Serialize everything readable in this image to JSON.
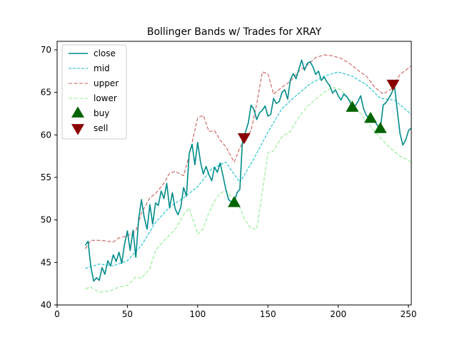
{
  "chart_data": {
    "type": "line",
    "title": "Bollinger Bands w/ Trades for XRAY",
    "xlabel": "",
    "ylabel": "",
    "xlim": [
      0,
      252
    ],
    "ylim": [
      40,
      71
    ],
    "xticks": [
      0,
      50,
      100,
      150,
      200,
      250
    ],
    "yticks": [
      40,
      45,
      50,
      55,
      60,
      65,
      70
    ],
    "grid": false,
    "legend_position": "top-left",
    "series": [
      {
        "name": "close",
        "color": "#008b8b",
        "style": "solid",
        "x": [
          20,
          22,
          24,
          26,
          28,
          30,
          32,
          34,
          36,
          38,
          40,
          42,
          44,
          46,
          48,
          50,
          52,
          54,
          56,
          58,
          60,
          62,
          64,
          66,
          68,
          70,
          72,
          74,
          76,
          78,
          80,
          82,
          84,
          86,
          88,
          90,
          92,
          94,
          96,
          98,
          100,
          102,
          104,
          106,
          108,
          110,
          112,
          114,
          116,
          118,
          120,
          122,
          124,
          126,
          128,
          130,
          132,
          134,
          136,
          138,
          140,
          142,
          144,
          146,
          148,
          150,
          152,
          154,
          156,
          158,
          160,
          162,
          164,
          166,
          168,
          170,
          172,
          174,
          176,
          178,
          180,
          182,
          184,
          186,
          188,
          190,
          192,
          194,
          196,
          198,
          200,
          202,
          204,
          206,
          208,
          210,
          212,
          214,
          216,
          218,
          220,
          222,
          224,
          226,
          228,
          230,
          232,
          234,
          236,
          238,
          240,
          242,
          244,
          246,
          248,
          250,
          252
        ],
        "values": [
          47.0,
          47.5,
          44.5,
          42.8,
          43.2,
          42.9,
          44.4,
          43.6,
          45.2,
          44.6,
          45.9,
          45.1,
          46.2,
          44.9,
          47.2,
          48.7,
          46.4,
          48.8,
          45.6,
          50.1,
          52.4,
          50.3,
          48.9,
          51.8,
          49.5,
          52.0,
          51.7,
          53.4,
          52.5,
          54.3,
          51.4,
          53.2,
          51.3,
          50.6,
          51.5,
          53.8,
          52.8,
          57.8,
          58.9,
          56.5,
          59.1,
          56.8,
          55.4,
          56.3,
          55.3,
          54.6,
          56.2,
          55.6,
          56.7,
          55.2,
          53.6,
          52.4,
          52.1,
          52.0,
          53.2,
          53.6,
          59.7,
          60.3,
          61.4,
          63.5,
          63.0,
          61.8,
          62.6,
          62.9,
          63.4,
          62.2,
          62.4,
          64.3,
          63.7,
          63.9,
          65.0,
          65.3,
          64.2,
          66.5,
          67.2,
          66.6,
          67.7,
          68.8,
          67.6,
          68.4,
          68.6,
          68.0,
          67.1,
          67.5,
          66.4,
          66.8,
          66.2,
          65.8,
          64.9,
          65.3,
          64.6,
          64.1,
          64.8,
          64.5,
          64.0,
          63.2,
          63.4,
          63.9,
          64.6,
          63.1,
          62.3,
          61.9,
          62.1,
          61.6,
          61.1,
          60.7,
          63.5,
          63.8,
          64.3,
          64.9,
          65.8,
          62.9,
          60.1,
          58.8,
          59.4,
          60.5,
          60.8
        ]
      },
      {
        "name": "mid",
        "color": "#17becf",
        "style": "dashed",
        "x": [
          20,
          30,
          40,
          50,
          60,
          70,
          80,
          90,
          100,
          110,
          120,
          130,
          140,
          150,
          160,
          170,
          180,
          190,
          200,
          210,
          220,
          230,
          240,
          252
        ],
        "values": [
          44.3,
          44.8,
          44.6,
          45.2,
          47.0,
          49.7,
          51.5,
          52.6,
          53.9,
          56.0,
          56.8,
          54.4,
          57.2,
          60.3,
          63.1,
          64.6,
          66.0,
          66.9,
          67.4,
          66.9,
          65.9,
          64.3,
          64.1,
          62.4
        ]
      },
      {
        "name": "upper",
        "color": "#cd5c5c",
        "style": "dashed",
        "x": [
          20,
          24,
          30,
          36,
          40,
          44,
          50,
          56,
          60,
          66,
          70,
          76,
          80,
          84,
          90,
          94,
          100,
          104,
          108,
          112,
          116,
          120,
          126,
          130,
          134,
          138,
          142,
          146,
          150,
          154,
          160,
          166,
          172,
          178,
          184,
          190,
          196,
          202,
          208,
          214,
          220,
          226,
          232,
          238,
          244,
          252
        ],
        "values": [
          46.6,
          47.6,
          47.6,
          47.5,
          47.4,
          47.9,
          48.1,
          48.7,
          50.8,
          52.6,
          53.1,
          54.3,
          55.5,
          55.7,
          55.2,
          57.6,
          62.0,
          62.3,
          60.4,
          60.5,
          59.4,
          58.6,
          56.8,
          58.5,
          59.6,
          60.5,
          63.6,
          67.4,
          67.2,
          64.8,
          65.6,
          66.3,
          67.5,
          68.2,
          69.1,
          69.4,
          69.3,
          69.0,
          68.4,
          67.6,
          66.9,
          65.6,
          64.8,
          65.4,
          67.1,
          68.1
        ]
      },
      {
        "name": "lower",
        "color": "#90ee90",
        "style": "dashed",
        "x": [
          20,
          24,
          30,
          36,
          40,
          44,
          50,
          56,
          60,
          66,
          70,
          76,
          80,
          84,
          90,
          94,
          100,
          104,
          108,
          112,
          116,
          120,
          126,
          130,
          134,
          138,
          142,
          146,
          150,
          154,
          160,
          166,
          172,
          178,
          184,
          190,
          196,
          202,
          208,
          214,
          220,
          226,
          232,
          238,
          244,
          252
        ],
        "values": [
          41.9,
          42.1,
          41.5,
          41.6,
          41.8,
          42.1,
          42.3,
          43.3,
          43.1,
          44.3,
          46.4,
          47.6,
          48.2,
          48.9,
          50.6,
          51.4,
          48.3,
          49.0,
          50.9,
          52.2,
          53.1,
          53.5,
          52.3,
          51.4,
          49.9,
          49.0,
          48.9,
          53.3,
          57.9,
          58.1,
          59.8,
          60.4,
          62.1,
          63.3,
          64.2,
          65.0,
          65.6,
          65.3,
          64.2,
          62.9,
          61.6,
          60.4,
          59.3,
          58.3,
          57.5,
          56.8
        ]
      }
    ],
    "markers": [
      {
        "name": "buy",
        "color": "#006400",
        "shape": "triangle-up",
        "points": [
          [
            126,
            52.0
          ],
          [
            210,
            63.2
          ],
          [
            223,
            61.9
          ],
          [
            230,
            60.7
          ]
        ]
      },
      {
        "name": "sell",
        "color": "#8b0000",
        "shape": "triangle-down",
        "points": [
          [
            133,
            59.7
          ],
          [
            239,
            66.0
          ]
        ]
      }
    ]
  }
}
